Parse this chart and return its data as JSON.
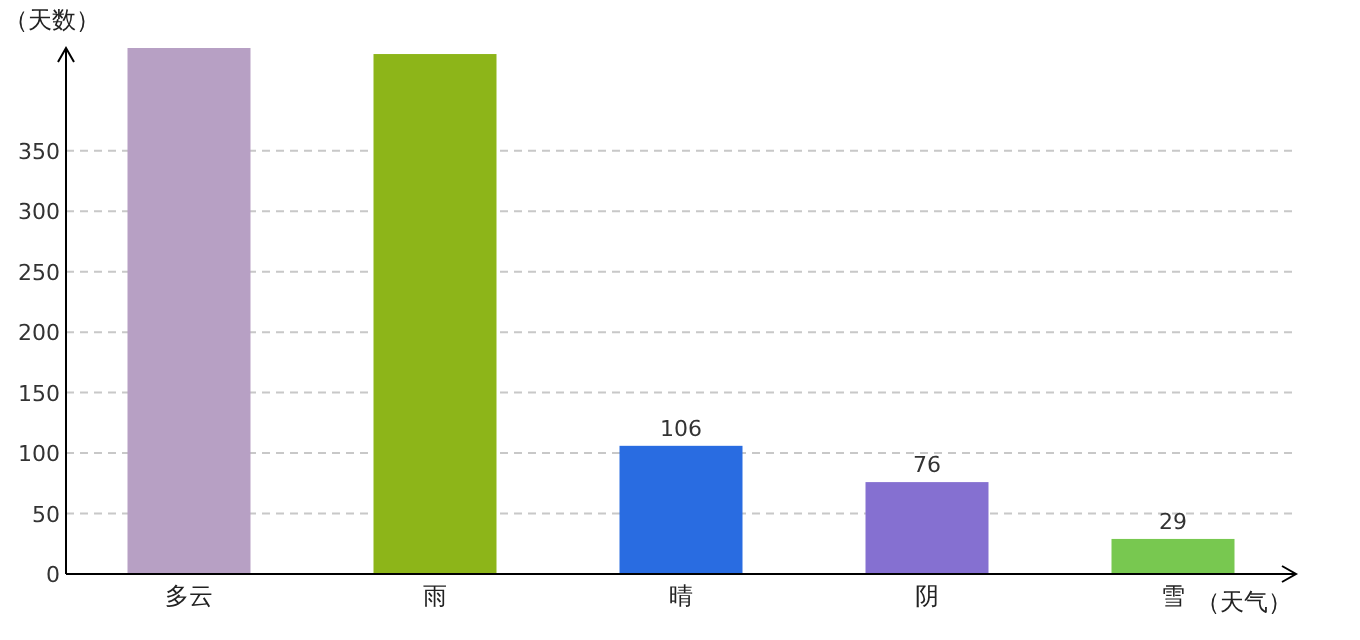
{
  "chart_data": {
    "type": "bar",
    "xlabel": "（天气）",
    "ylabel": "（天数）",
    "categories": [
      "多云",
      "雨",
      "晴",
      "阴",
      "雪"
    ],
    "values": [
      435,
      430,
      106,
      76,
      29
    ],
    "colors": [
      "#b7a0c4",
      "#8db519",
      "#296ce1",
      "#8570d1",
      "#78c850"
    ],
    "value_labels": [
      null,
      null,
      "106",
      "76",
      "29"
    ],
    "ylim": [
      0,
      435
    ],
    "yticks": [
      0,
      50,
      100,
      150,
      200,
      250,
      300,
      350
    ],
    "grid": "y"
  }
}
